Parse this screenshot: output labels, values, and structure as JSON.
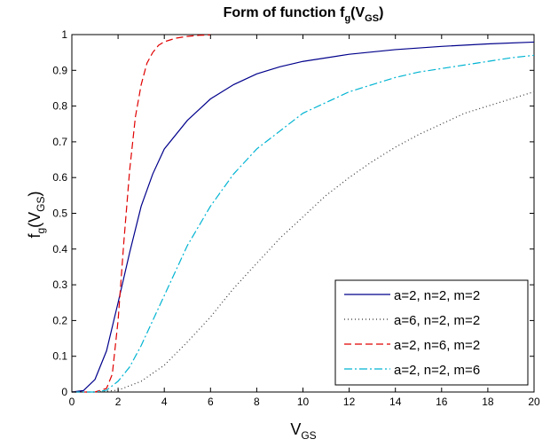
{
  "chart_data": {
    "type": "line",
    "title": "Form of function f",
    "title_sub": "g",
    "title_paren_open": "(V",
    "title_paren_sub": "GS",
    "title_paren_close": ")",
    "xlabel": "V",
    "xlabel_sub": "GS",
    "ylabel": "f",
    "ylabel_sub": "g",
    "ylabel_paren_open": "(V",
    "ylabel_paren_sub": "GS",
    "ylabel_paren_close": ")",
    "xlim": [
      0,
      20
    ],
    "ylim": [
      0,
      1
    ],
    "xticks": [
      0,
      2,
      4,
      6,
      8,
      10,
      12,
      14,
      16,
      18,
      20
    ],
    "xtick_labels": [
      "0",
      "2",
      "4",
      "6",
      "8",
      "10",
      "12",
      "14",
      "16",
      "18",
      "20"
    ],
    "yticks": [
      0,
      0.1,
      0.2,
      0.3,
      0.4,
      0.5,
      0.6,
      0.7,
      0.8,
      0.9,
      1
    ],
    "ytick_labels": [
      "0",
      "0.1",
      "0.2",
      "0.3",
      "0.4",
      "0.5",
      "0.6",
      "0.7",
      "0.8",
      "0.9",
      "1"
    ],
    "grid": false,
    "legend_position": "bottom-right",
    "series": [
      {
        "name": "a=2, n=2, m=2",
        "color": "#00008b",
        "style": "solid",
        "x": [
          0,
          0.5,
          1,
          1.5,
          2,
          2.5,
          3,
          3.5,
          4,
          5,
          6,
          7,
          8,
          9,
          10,
          12,
          14,
          16,
          18,
          20
        ],
        "y": [
          0,
          0.004,
          0.035,
          0.115,
          0.25,
          0.39,
          0.52,
          0.61,
          0.68,
          0.76,
          0.82,
          0.86,
          0.89,
          0.91,
          0.925,
          0.945,
          0.958,
          0.967,
          0.974,
          0.979
        ]
      },
      {
        "name": "a=6, n=2, m=2",
        "color": "#333333",
        "style": "dotted",
        "x": [
          0,
          1,
          2,
          3,
          4,
          5,
          6,
          7,
          8,
          9,
          10,
          11,
          12,
          13,
          14,
          15,
          16,
          17,
          18,
          19,
          20
        ],
        "y": [
          0,
          0,
          0.005,
          0.03,
          0.075,
          0.14,
          0.21,
          0.29,
          0.36,
          0.43,
          0.49,
          0.55,
          0.6,
          0.645,
          0.685,
          0.72,
          0.75,
          0.78,
          0.8,
          0.82,
          0.84
        ]
      },
      {
        "name": "a=2, n=6, m=2",
        "color": "#e00000",
        "style": "dashed",
        "x": [
          0,
          1,
          1.5,
          1.75,
          2,
          2.25,
          2.5,
          2.75,
          3,
          3.25,
          3.5,
          3.75,
          4,
          4.5,
          5,
          5.5,
          6
        ],
        "y": [
          0,
          0,
          0.01,
          0.05,
          0.2,
          0.42,
          0.62,
          0.77,
          0.86,
          0.92,
          0.95,
          0.97,
          0.98,
          0.99,
          0.995,
          0.998,
          0.999
        ]
      },
      {
        "name": "a=2, n=2, m=6",
        "color": "#00b4d2",
        "style": "dashdot",
        "x": [
          0,
          1,
          1.5,
          2,
          2.5,
          3,
          3.5,
          4,
          4.5,
          5,
          6,
          7,
          8,
          9,
          10,
          11,
          12,
          13,
          14,
          15,
          16,
          17,
          18,
          19,
          20
        ],
        "y": [
          0,
          0,
          0.005,
          0.03,
          0.07,
          0.13,
          0.2,
          0.27,
          0.34,
          0.41,
          0.52,
          0.61,
          0.68,
          0.73,
          0.78,
          0.81,
          0.84,
          0.86,
          0.88,
          0.895,
          0.905,
          0.915,
          0.925,
          0.935,
          0.942
        ]
      }
    ]
  }
}
